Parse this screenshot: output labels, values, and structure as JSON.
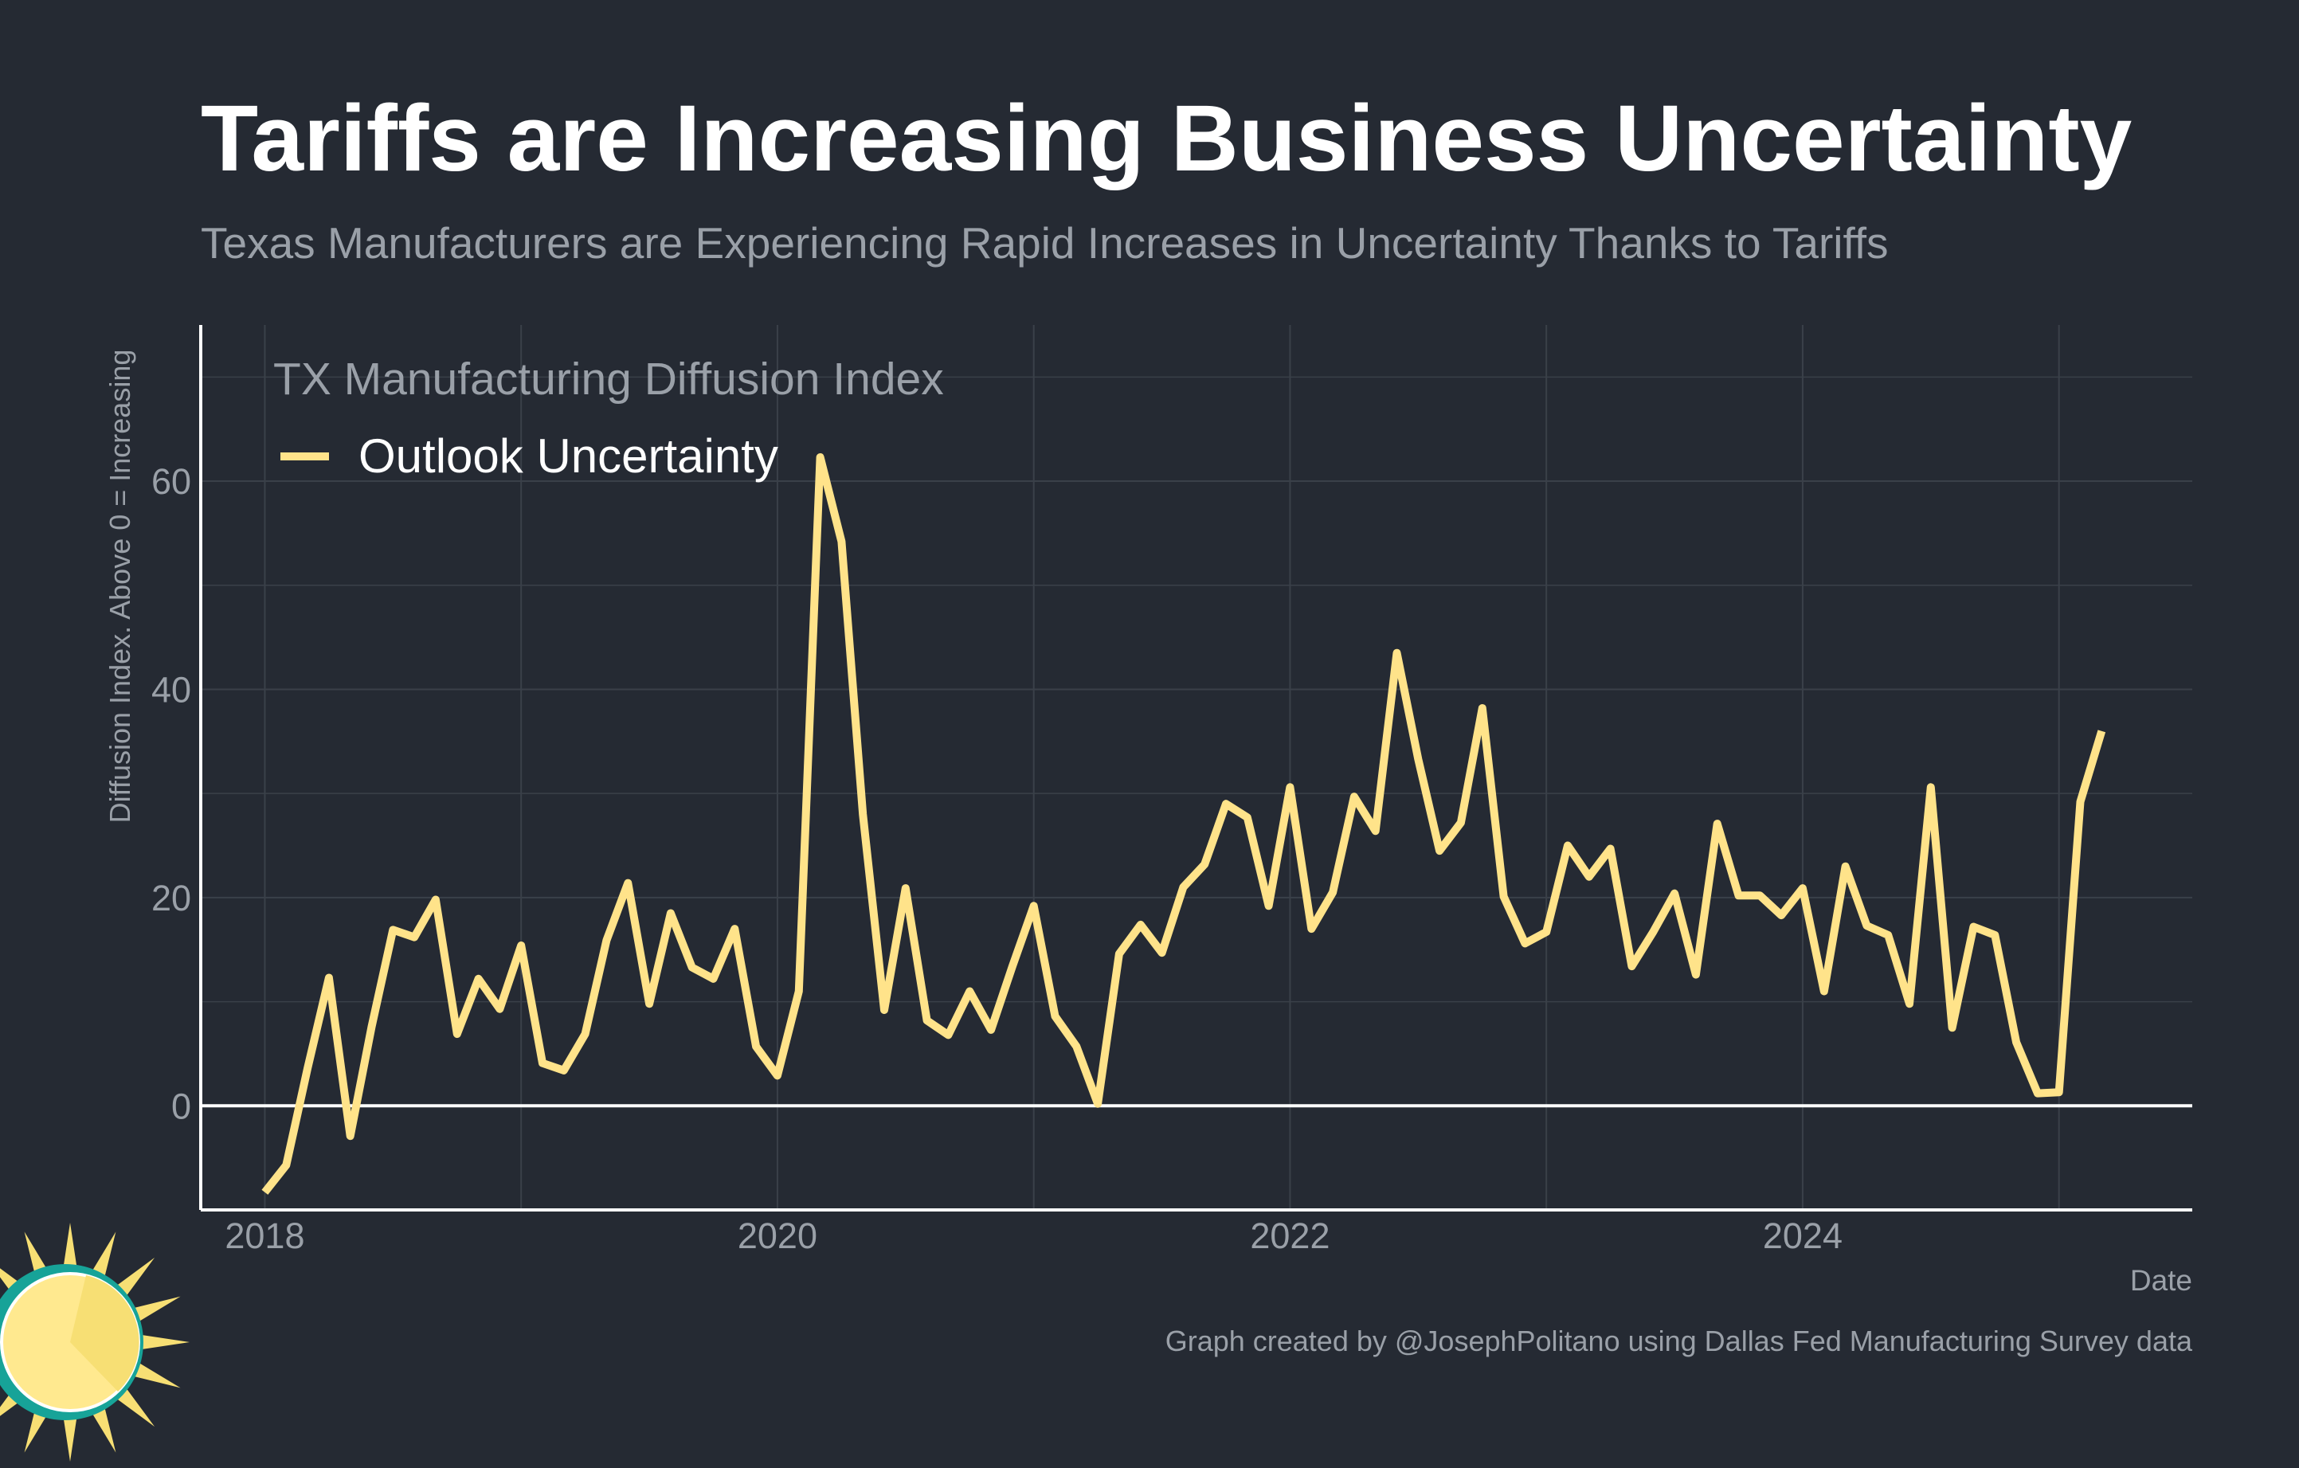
{
  "title": "Tariffs are Increasing Business Uncertainty",
  "subtitle": "Texas Manufacturers are Experiencing Rapid Increases in Uncertainty Thanks to Tariffs",
  "caption": "Graph created by @JosephPolitano using Dallas Fed Manufacturing Survey data",
  "colors": {
    "background": "#252a33",
    "series": "#ffe38a",
    "grid": "#3a4049",
    "axis": "#ffffff",
    "text_muted": "#9aa0a8",
    "logo_sun": "#f7df74",
    "logo_ring": "#17a398"
  },
  "logo": {
    "icon": "sun-icon"
  },
  "chart_data": {
    "type": "line",
    "legend_title": "TX Manufacturing Diffusion Index",
    "legend_position": "top-left",
    "xlabel": "Date",
    "ylabel": "Diffusion Index. Above 0 = Increasing",
    "xlim": [
      2017.75,
      2025.52
    ],
    "ylim": [
      -10,
      75
    ],
    "grid": true,
    "x_ticks": [
      2018,
      2020,
      2022,
      2024
    ],
    "x_tick_labels": [
      "2018",
      "2020",
      "2022",
      "2024"
    ],
    "y_ticks": [
      0,
      20,
      40,
      60
    ],
    "y_tick_labels": [
      "0",
      "20",
      "40",
      "60"
    ],
    "series": [
      {
        "name": "Outlook Uncertainty",
        "start": "2018-01",
        "frequency": "monthly",
        "values": [
          -8.3,
          -5.7,
          3.6,
          12.3,
          -2.9,
          7.6,
          16.9,
          16.2,
          19.8,
          6.9,
          12.2,
          9.3,
          15.4,
          4.1,
          3.4,
          6.9,
          15.9,
          21.4,
          9.8,
          18.5,
          13.3,
          12.2,
          17.0,
          5.7,
          2.9,
          11.0,
          62.3,
          54.2,
          28.0,
          9.2,
          20.9,
          8.2,
          6.8,
          11.0,
          7.3,
          13.4,
          19.2,
          8.6,
          5.7,
          0.2,
          14.6,
          17.4,
          14.7,
          21.0,
          23.2,
          29.0,
          27.7,
          19.2,
          30.6,
          17.0,
          20.5,
          29.7,
          26.4,
          43.5,
          33.3,
          24.5,
          27.2,
          38.2,
          20.1,
          15.6,
          16.7,
          25.0,
          22.0,
          24.7,
          13.4,
          16.7,
          20.4,
          12.6,
          27.1,
          20.2,
          20.2,
          18.3,
          20.9,
          11.0,
          23.0,
          17.3,
          16.4,
          9.8,
          30.6,
          7.5,
          17.2,
          16.4,
          6.1,
          1.2,
          1.3,
          29.2,
          36.0
        ]
      }
    ]
  }
}
